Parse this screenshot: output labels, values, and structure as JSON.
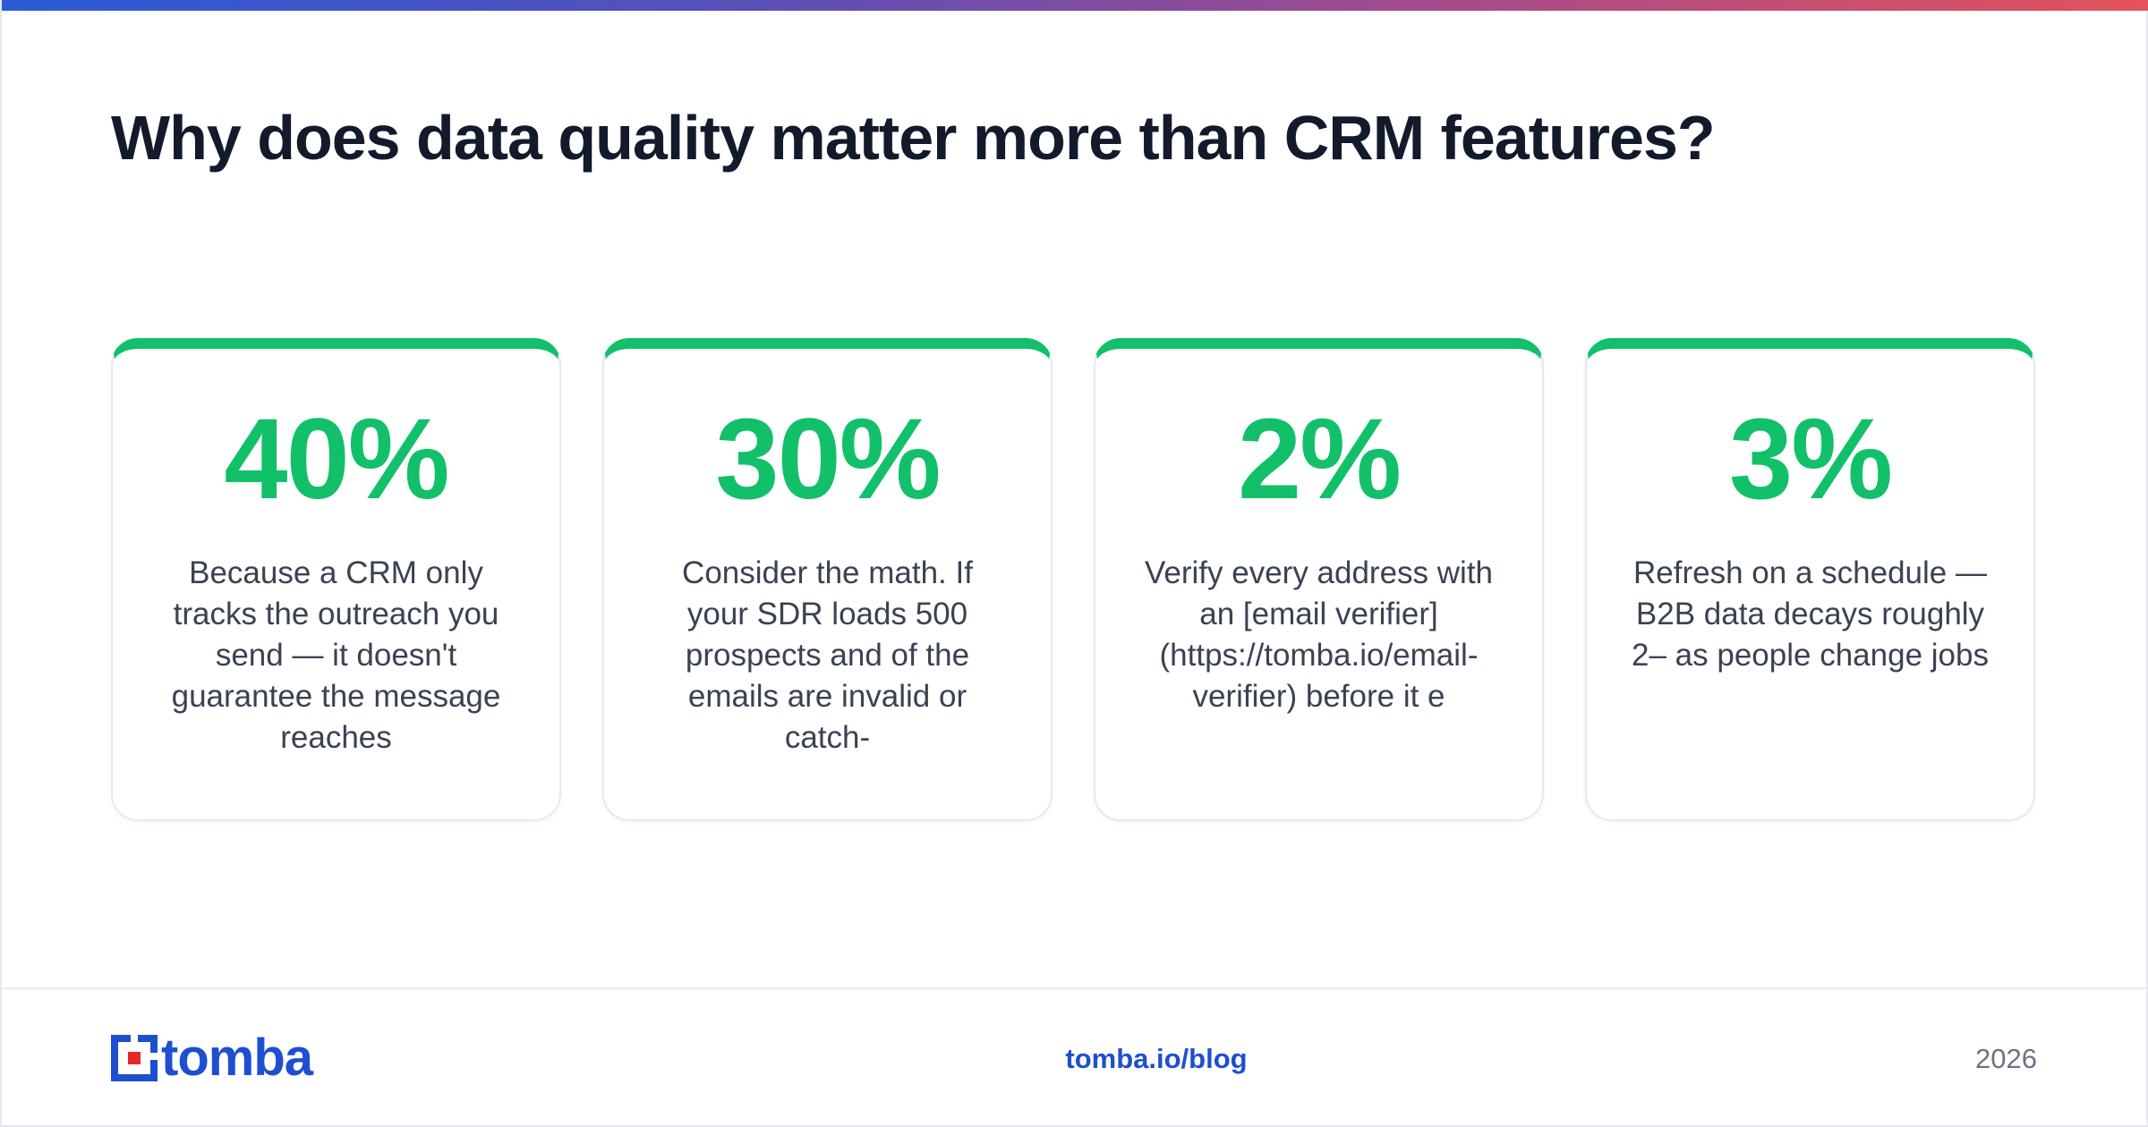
{
  "title": "Why does data quality matter more than CRM features?",
  "cards": [
    {
      "stat": "40%",
      "text": "Because a CRM only tracks the outreach you send — it doesn't guarantee the message reaches"
    },
    {
      "stat": "30%",
      "text": "Consider the math. If your SDR loads 500 prospects and of the emails are invalid or catch-"
    },
    {
      "stat": "2%",
      "text": "Verify every address with an [email verifier] (https://tomba.io/email-verifier) before it e"
    },
    {
      "stat": "3%",
      "text": "Refresh on a schedule — B2B data decays roughly 2– as people change jobs"
    }
  ],
  "footer": {
    "brand": "tomba",
    "link": "tomba.io/blog",
    "year": "2026"
  },
  "colors": {
    "accent": "#12c06a",
    "brand_blue": "#1e4fd0",
    "brand_red": "#e8262b",
    "title": "#121a2c"
  },
  "icons": {
    "logo": "tomba-logo-icon"
  }
}
